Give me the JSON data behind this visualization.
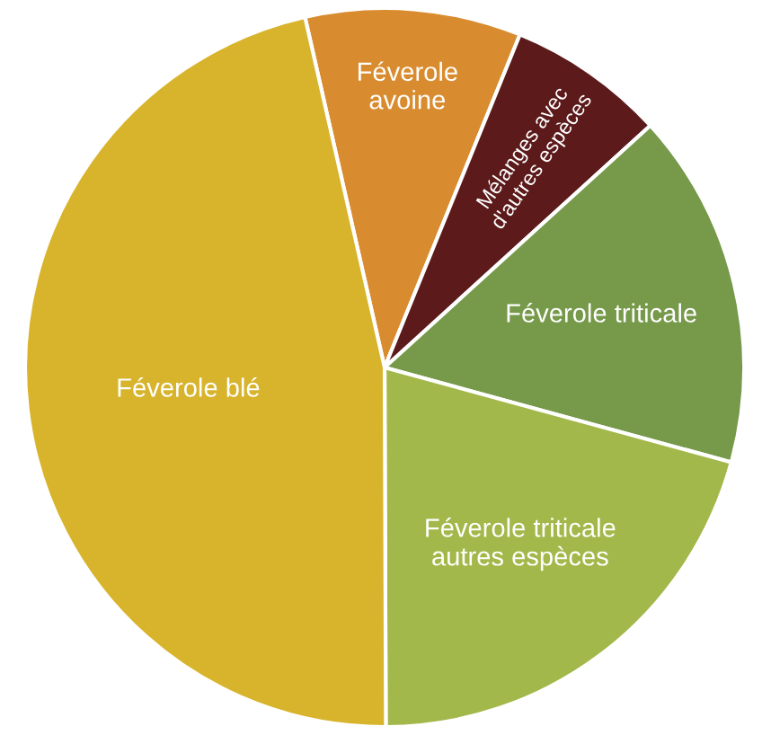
{
  "chart_data": {
    "type": "pie",
    "categories": [
      "Féverole\navoine",
      "Mélanges avec\nd'autres espèces",
      "Féverole triticale",
      "Féverole triticale\nautres espèces",
      "Féverole blé"
    ],
    "values": [
      9.7,
      7.1,
      16.0,
      20.7,
      46.5
    ],
    "colors": [
      "#d98c2f",
      "#5c1a1a",
      "#76994a",
      "#a3b84a",
      "#d8b42c"
    ]
  }
}
